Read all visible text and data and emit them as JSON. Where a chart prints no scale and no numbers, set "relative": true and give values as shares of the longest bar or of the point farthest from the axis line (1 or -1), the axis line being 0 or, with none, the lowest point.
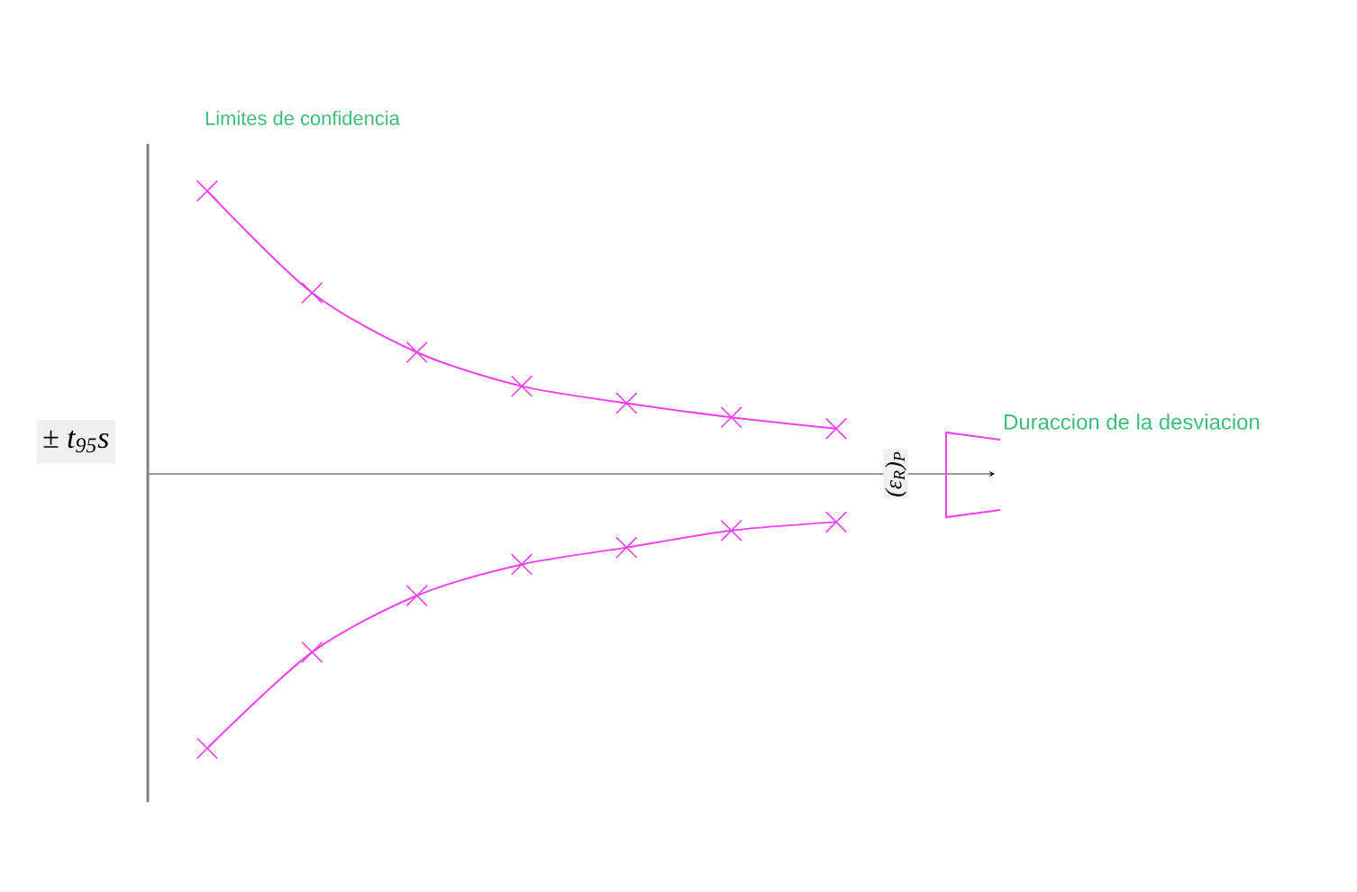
{
  "chart_data": {
    "type": "line",
    "relative": true,
    "title": "Limites de confidencia",
    "annotations": [
      "± t$_{95}$s",
      "(ε$_{R}$)$_{P}$",
      "Duraccion de la desviacion"
    ],
    "categories": [
      null,
      null,
      null,
      null,
      null,
      null,
      null
    ],
    "marker": "cross",
    "line_style": "solid",
    "series": [
      {
        "color": "#f040f0",
        "values": [
          1,
          0.64,
          0.43,
          0.31,
          0.25,
          0.2,
          0.16
        ]
      },
      {
        "color": "#f040f0",
        "values": [
          -0.97,
          -0.63,
          -0.43,
          -0.32,
          -0.26,
          -0.2,
          -0.17
        ]
      }
    ]
  }
}
